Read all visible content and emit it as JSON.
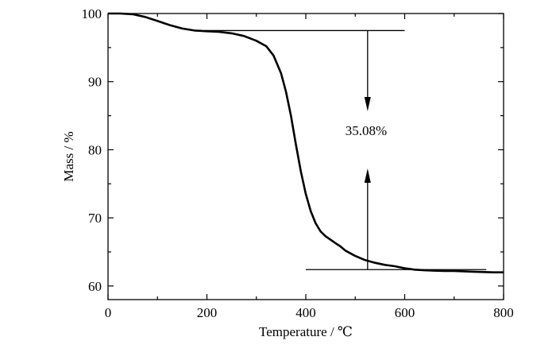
{
  "chart_data": {
    "type": "line",
    "xlabel": "Temperature / ℃",
    "ylabel": "Mass / %",
    "xlim": [
      0,
      800
    ],
    "ylim": [
      58,
      100
    ],
    "xticks": [
      0,
      200,
      400,
      600,
      800
    ],
    "xtick_labels": [
      "0",
      "200",
      "400",
      "600",
      "800"
    ],
    "yticks": [
      60,
      70,
      80,
      90,
      100
    ],
    "ytick_labels": [
      "60",
      "70",
      "80",
      "90",
      "100"
    ],
    "grid": false,
    "series": [
      {
        "x": [
          0,
          25,
          50,
          75,
          100,
          125,
          150,
          175,
          200,
          225,
          250,
          275,
          300,
          320,
          335,
          350,
          360,
          370,
          380,
          390,
          400,
          410,
          420,
          430,
          440,
          450,
          460,
          470,
          480,
          490,
          500,
          510,
          520,
          540,
          560,
          580,
          600,
          620,
          640,
          660,
          680,
          700,
          720,
          740,
          760,
          780,
          800
        ],
        "y": [
          100,
          100,
          99.9,
          99.5,
          98.9,
          98.3,
          97.8,
          97.5,
          97.4,
          97.3,
          97.1,
          96.7,
          96.0,
          95.2,
          93.8,
          91.2,
          88.5,
          85.0,
          80.8,
          76.8,
          73.5,
          71.0,
          69.2,
          68.0,
          67.3,
          66.8,
          66.3,
          65.8,
          65.2,
          64.8,
          64.4,
          64.1,
          63.8,
          63.4,
          63.1,
          62.9,
          62.6,
          62.4,
          62.3,
          62.25,
          62.2,
          62.2,
          62.15,
          62.1,
          62.05,
          62.0,
          62.0
        ]
      }
    ],
    "annotation": {
      "text": "35.08%",
      "upper_level": 97.5,
      "lower_level": 62.4,
      "upper_line_x": [
        195,
        600
      ],
      "lower_line_x": [
        400,
        765
      ],
      "arrow_x": 525
    }
  }
}
